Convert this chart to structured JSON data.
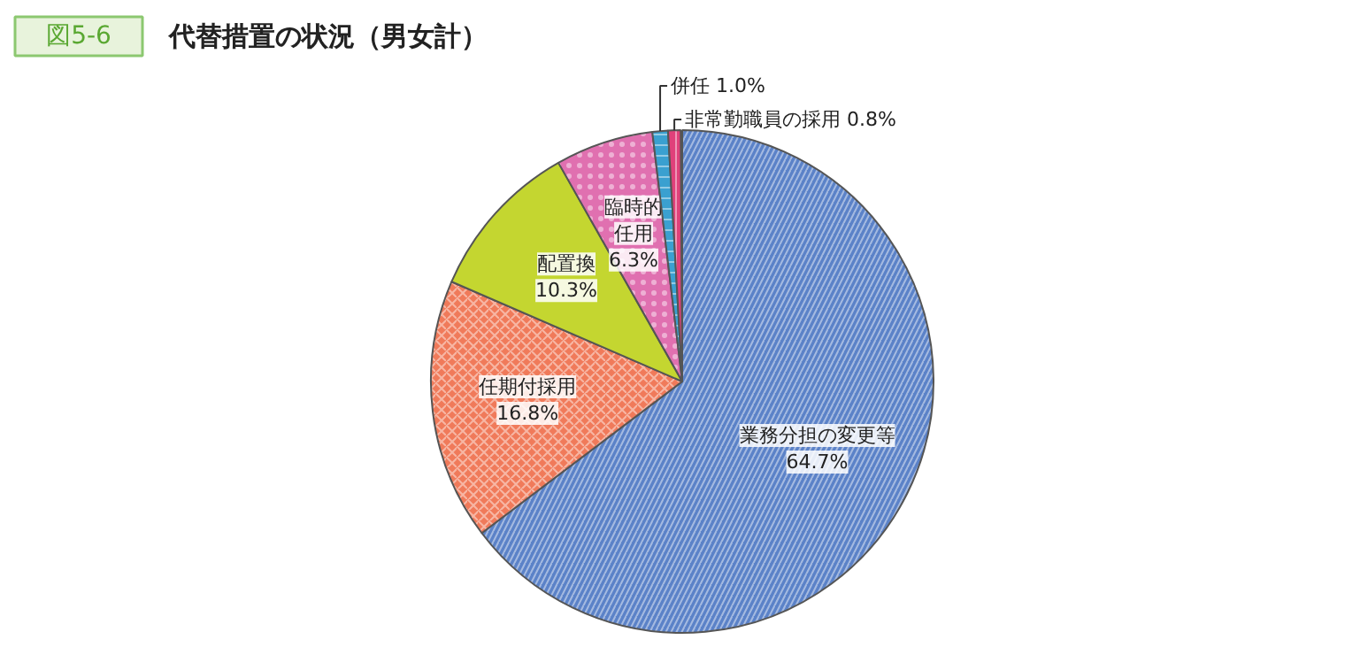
{
  "chart_data": {
    "type": "pie",
    "title": "代替措置の状況（男女計）",
    "annotations": [
      "図5-6"
    ],
    "categories": [
      "業務分担の変更等",
      "任期付採用",
      "配置換",
      "臨時的任用",
      "併任",
      "非常勤職員の採用"
    ],
    "value_labels": [
      "64.7%",
      "16.8%",
      "10.3%",
      "6.3%",
      "1.0%",
      "0.8%"
    ],
    "values": [
      64.7,
      16.8,
      10.3,
      6.3,
      1.0,
      0.8
    ],
    "colors": [
      "#5b82c8",
      "#f07a5a",
      "#c4d630",
      "#e070b0",
      "#3aa0d0",
      "#e0407a"
    ]
  }
}
